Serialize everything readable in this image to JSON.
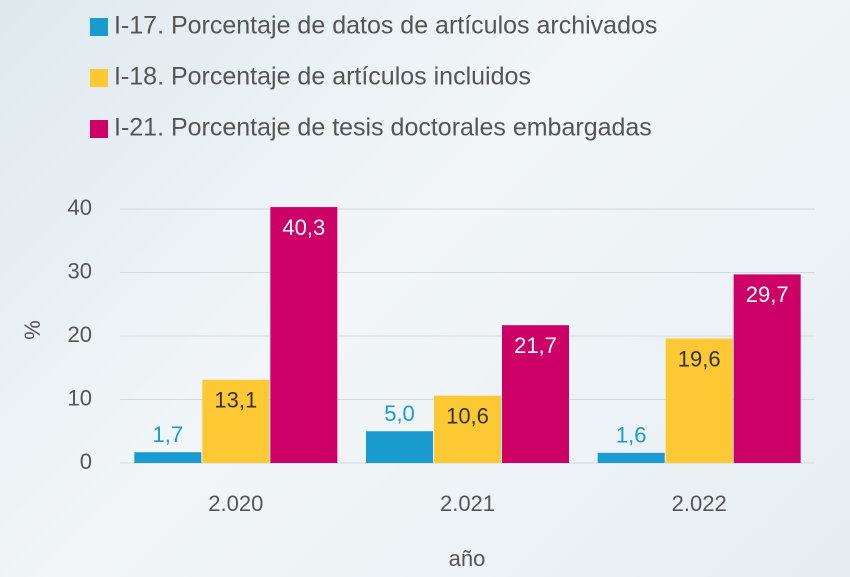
{
  "chart_data": {
    "type": "bar",
    "categories": [
      "2.020",
      "2.021",
      "2.022"
    ],
    "series": [
      {
        "name": "I-17. Porcentaje de datos de artículos archivados",
        "color": "#1a9bcf",
        "values": [
          1.7,
          5.0,
          1.6
        ],
        "value_labels": [
          "1,7",
          "5,0",
          "1,6"
        ]
      },
      {
        "name": "I-18. Porcentaje de artículos incluidos",
        "color": "#fcc934",
        "values": [
          13.1,
          10.6,
          19.6
        ],
        "value_labels": [
          "13,1",
          "10,6",
          "19,6"
        ]
      },
      {
        "name": "I-21. Porcentaje de tesis doctorales embargadas",
        "color": "#cc0066",
        "values": [
          40.3,
          21.7,
          29.7
        ],
        "value_labels": [
          "40,3",
          "21,7",
          "29,7"
        ]
      }
    ],
    "ylabel": "%",
    "xlabel": "año",
    "ylim": [
      0,
      40
    ],
    "yticks": [
      0,
      10,
      20,
      30,
      40
    ],
    "grid": true
  }
}
